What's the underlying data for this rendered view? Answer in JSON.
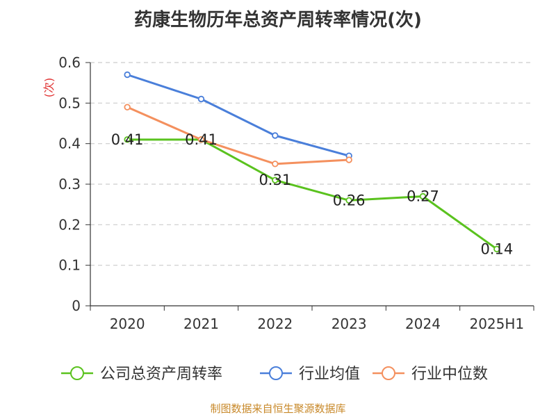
{
  "chart_data": {
    "type": "line",
    "title": "药康生物历年总资产周转率情况(次)",
    "ylabel": "(次)",
    "xlabel": "",
    "categories": [
      "2020",
      "2021",
      "2022",
      "2023",
      "2024",
      "2025H1"
    ],
    "ylim": [
      0,
      0.6
    ],
    "yticks": [
      0,
      0.1,
      0.2,
      0.3,
      0.4,
      0.5,
      0.6
    ],
    "ytick_labels": [
      "0",
      "0.1",
      "0.2",
      "0.3",
      "0.4",
      "0.5",
      "0.6"
    ],
    "grid": true,
    "legend_position": "bottom",
    "series": [
      {
        "name": "公司总资产周转率",
        "color": "#5ac21e",
        "values": [
          0.41,
          0.41,
          0.31,
          0.26,
          0.27,
          0.14
        ],
        "labels": [
          "0.41",
          "0.41",
          "0.31",
          "0.26",
          "0.27",
          "0.14"
        ]
      },
      {
        "name": "行业均值",
        "color": "#4a7fda",
        "values": [
          0.57,
          0.51,
          0.42,
          0.37,
          null,
          null
        ]
      },
      {
        "name": "行业中位数",
        "color": "#f4905e",
        "values": [
          0.49,
          0.41,
          0.35,
          0.36,
          null,
          null
        ]
      }
    ]
  },
  "source_text": "制图数据来自恒生聚源数据库"
}
